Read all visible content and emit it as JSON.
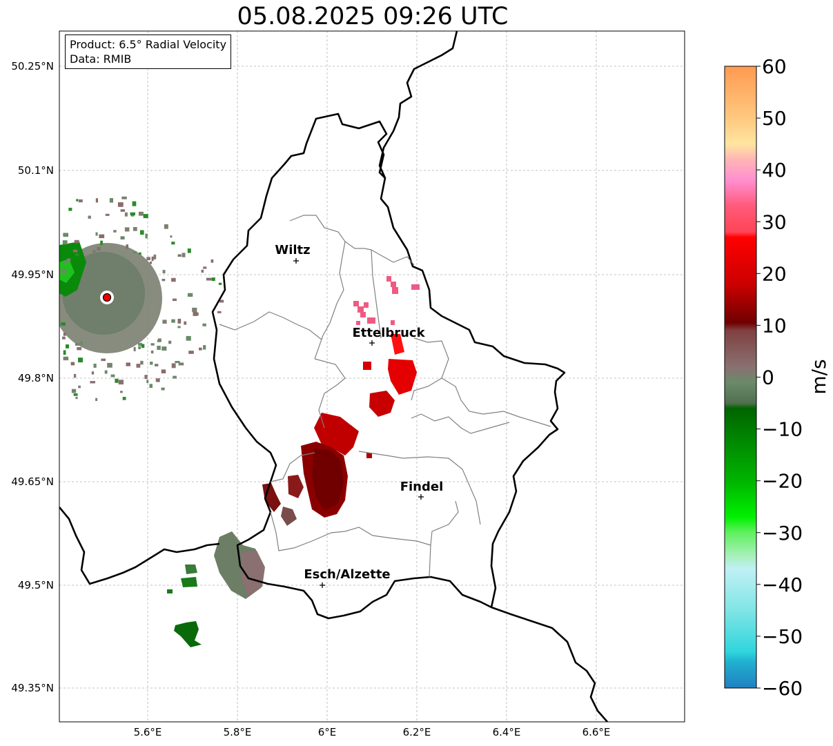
{
  "title": "05.08.2025 09:26 UTC",
  "info": {
    "product": "Product: 6.5° Radial Velocity",
    "data_source": "Data: RMIB"
  },
  "lat_labels": [
    "50.25°N",
    "50.1°N",
    "49.95°N",
    "49.8°N",
    "49.65°N",
    "49.5°N",
    "49.35°N"
  ],
  "lon_labels": [
    "5.6°E",
    "5.8°E",
    "6°E",
    "6.2°E",
    "6.4°E",
    "6.6°E"
  ],
  "cities": [
    {
      "name": "Wiltz"
    },
    {
      "name": "Ettelbruck"
    },
    {
      "name": "Findel"
    },
    {
      "name": "Esch/Alzette"
    }
  ],
  "colorbar": {
    "unit": "m/s",
    "ticks": [
      "60",
      "50",
      "40",
      "30",
      "20",
      "10",
      "0",
      "−10",
      "−20",
      "−30",
      "−40",
      "−50",
      "−60"
    ],
    "range": [
      -60,
      60
    ],
    "stops": [
      {
        "v": 60,
        "c": "#ff9a50"
      },
      {
        "v": 50,
        "c": "#ffc880"
      },
      {
        "v": 45,
        "c": "#ffe5a0"
      },
      {
        "v": 42,
        "c": "#ffb5b5"
      },
      {
        "v": 38,
        "c": "#ff8fd0"
      },
      {
        "v": 33,
        "c": "#ff5a7a"
      },
      {
        "v": 28,
        "c": "#ff4455"
      },
      {
        "v": 27,
        "c": "#ff0000"
      },
      {
        "v": 18,
        "c": "#cc0000"
      },
      {
        "v": 10.5,
        "c": "#700000"
      },
      {
        "v": 9,
        "c": "#804040"
      },
      {
        "v": 2,
        "c": "#8a7070"
      },
      {
        "v": -1,
        "c": "#6a8a6a"
      },
      {
        "v": -5,
        "c": "#507050"
      },
      {
        "v": -6,
        "c": "#006400"
      },
      {
        "v": -20,
        "c": "#00b400"
      },
      {
        "v": -27,
        "c": "#00f000"
      },
      {
        "v": -30,
        "c": "#60f060"
      },
      {
        "v": -34,
        "c": "#a0f0b0"
      },
      {
        "v": -37,
        "c": "#c0f0f5"
      },
      {
        "v": -45,
        "c": "#80e5e5"
      },
      {
        "v": -53,
        "c": "#30d5dd"
      },
      {
        "v": -55,
        "c": "#20b0d0"
      },
      {
        "v": -60,
        "c": "#2080c0"
      }
    ]
  },
  "radar_site": {
    "marker_color": "#ee0000"
  },
  "colors": {
    "border": "#000000",
    "canton": "#808080",
    "grid": "#b0b0b0",
    "approaching_dark": "#006400",
    "neutral": "#7a8070",
    "receding_dark": "#7a0000",
    "receding_red": "#e00000",
    "receding_pink": "#f05080"
  }
}
